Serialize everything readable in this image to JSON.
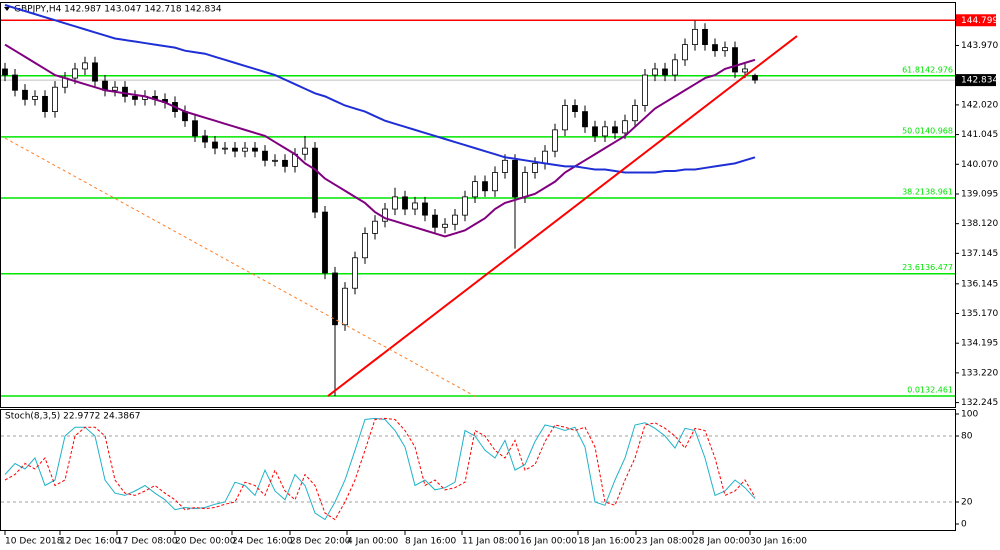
{
  "chart_data": [
    {
      "type": "candlestick",
      "title": "GBPJPY,H4  142.987 143.047 142.718 142.834",
      "xlim": [
        0,
        95
      ],
      "xticks": [
        {
          "value": 0,
          "label": "10 Dec 2018"
        },
        {
          "value": 5.5,
          "label": "12 Dec 16:00"
        },
        {
          "value": 11.2,
          "label": "17 Dec 08:00"
        },
        {
          "value": 17,
          "label": "20 Dec 00:00"
        },
        {
          "value": 22.7,
          "label": "24 Dec 16:00"
        },
        {
          "value": 28.5,
          "label": "28 Dec 20:00"
        },
        {
          "value": 34.2,
          "label": "4 Jan 00:00"
        },
        {
          "value": 40,
          "label": "8 Jan 16:00"
        },
        {
          "value": 45.7,
          "label": "11 Jan 08:00"
        },
        {
          "value": 51.5,
          "label": "16 Jan 00:00"
        },
        {
          "value": 57.3,
          "label": "18 Jan 16:00"
        },
        {
          "value": 63.1,
          "label": "23 Jan 08:00"
        },
        {
          "value": 68.8,
          "label": "28 Jan 00:00"
        },
        {
          "value": 74.5,
          "label": "30 Jan 16:00"
        }
      ],
      "ylim": [
        132.1,
        145.3
      ],
      "yticks": [
        {
          "value": 143.97,
          "label": "143.970"
        },
        {
          "value": 142.02,
          "label": "142.020"
        },
        141.045,
        {
          "value": 140.07,
          "label": "140.070"
        },
        139.095,
        {
          "value": 138.12,
          "label": "138.120"
        },
        137.145,
        136.145,
        {
          "value": 135.17,
          "label": "135.170"
        },
        134.195,
        {
          "value": 133.22,
          "label": "133.220"
        },
        132.245
      ],
      "current_price": 142.834,
      "levels": [
        {
          "value": 144.799,
          "color": "#ff0000"
        }
      ],
      "fib_levels": [
        {
          "value": 142.976,
          "label": "61.8142.976"
        },
        {
          "value": 140.968,
          "label": "50.0140.968"
        },
        {
          "value": 138.961,
          "label": "38.2138.961"
        },
        {
          "value": 136.477,
          "label": "23.6136.477"
        },
        {
          "value": 132.461,
          "label": "0.0132.461"
        }
      ],
      "fib_color": "#00e600",
      "trend_lines": [
        {
          "x": [
            32.3,
            79.2
          ],
          "y": [
            132.461,
            144.28
          ],
          "color": "#ff0000",
          "dashed": false
        },
        {
          "x": [
            0,
            47.3
          ],
          "y": [
            140.93,
            132.4
          ],
          "color": "#ff7f27",
          "dashed": true
        }
      ],
      "open": [
        143.2,
        143.0,
        142.5,
        142.2,
        142.3,
        141.8,
        142.6,
        142.9,
        143.2,
        143.4,
        142.8,
        142.5,
        142.6,
        142.3,
        142.2,
        142.3,
        142.2,
        142.1,
        141.8,
        141.5,
        141.0,
        140.8,
        140.6,
        140.6,
        140.5,
        140.6,
        140.5,
        140.2,
        140.2,
        140.0,
        140.4,
        140.6,
        138.5,
        136.5,
        134.8,
        136.0,
        137.0,
        137.8,
        138.2,
        138.6,
        139.0,
        138.6,
        138.8,
        138.4,
        138.0,
        138.1,
        138.4,
        139.0,
        139.5,
        139.2,
        139.8,
        140.2,
        139.0,
        139.8,
        140.1,
        140.5,
        141.2,
        142.0,
        141.8,
        141.3,
        141.0,
        141.3,
        141.1,
        141.5,
        142.0,
        143.0,
        143.2,
        143.0,
        143.5,
        144.0,
        144.5,
        144.0,
        143.8,
        143.9,
        143.1,
        142.987
      ],
      "high": [
        143.4,
        143.2,
        142.7,
        142.5,
        142.5,
        142.8,
        143.1,
        143.4,
        143.6,
        143.6,
        143.0,
        142.8,
        142.8,
        142.5,
        142.5,
        142.5,
        142.4,
        142.3,
        142.0,
        141.7,
        141.2,
        141.0,
        140.8,
        140.8,
        140.8,
        140.8,
        140.7,
        140.4,
        140.4,
        140.6,
        141.0,
        140.8,
        138.7,
        136.7,
        136.2,
        137.2,
        138.0,
        138.4,
        138.8,
        139.3,
        139.2,
        139.0,
        139.0,
        138.6,
        138.3,
        138.6,
        139.2,
        139.7,
        139.7,
        140.0,
        140.4,
        140.4,
        140.0,
        140.3,
        140.7,
        141.4,
        142.2,
        142.2,
        142.0,
        141.5,
        141.5,
        141.5,
        141.7,
        142.2,
        143.2,
        143.4,
        143.4,
        143.7,
        144.2,
        144.799,
        144.7,
        144.2,
        144.1,
        144.1,
        143.4,
        143.047
      ],
      "low": [
        142.8,
        142.3,
        142.0,
        142.0,
        141.6,
        141.6,
        142.4,
        142.7,
        143.0,
        142.6,
        142.3,
        142.3,
        142.1,
        142.0,
        142.0,
        142.0,
        141.9,
        141.6,
        141.3,
        140.8,
        140.6,
        140.4,
        140.4,
        140.3,
        140.3,
        140.3,
        140.0,
        140.0,
        139.8,
        139.8,
        140.2,
        138.3,
        136.3,
        132.461,
        134.6,
        135.8,
        136.8,
        137.6,
        138.0,
        138.4,
        138.4,
        138.4,
        138.2,
        137.8,
        137.8,
        137.9,
        138.2,
        138.8,
        139.0,
        139.0,
        139.6,
        137.3,
        138.8,
        139.6,
        139.9,
        140.3,
        141.0,
        141.6,
        141.1,
        140.8,
        140.8,
        140.9,
        140.9,
        141.3,
        141.8,
        142.8,
        142.8,
        142.8,
        143.3,
        143.8,
        143.8,
        143.6,
        143.6,
        142.9,
        142.9,
        142.718
      ],
      "close": [
        143.0,
        142.5,
        142.2,
        142.3,
        141.8,
        142.6,
        142.9,
        143.2,
        143.4,
        142.8,
        142.5,
        142.6,
        142.3,
        142.2,
        142.3,
        142.2,
        142.1,
        141.8,
        141.5,
        141.0,
        140.8,
        140.6,
        140.6,
        140.5,
        140.6,
        140.5,
        140.2,
        140.2,
        140.0,
        140.4,
        140.6,
        138.5,
        136.5,
        134.8,
        136.0,
        137.0,
        137.8,
        138.2,
        138.6,
        139.0,
        138.6,
        138.8,
        138.4,
        138.0,
        138.1,
        138.4,
        139.0,
        139.5,
        139.2,
        139.8,
        140.2,
        139.0,
        139.8,
        140.1,
        140.5,
        141.2,
        142.0,
        141.8,
        141.3,
        141.0,
        141.3,
        141.1,
        141.5,
        142.0,
        143.0,
        143.2,
        143.0,
        143.5,
        144.0,
        144.5,
        144.0,
        143.8,
        143.9,
        143.1,
        143.2,
        142.834
      ],
      "ma": [
        {
          "color": "#800080",
          "values": [
            144.0,
            143.8,
            143.6,
            143.4,
            143.2,
            143.0,
            142.9,
            142.8,
            142.7,
            142.6,
            142.5,
            142.45,
            142.4,
            142.35,
            142.3,
            142.2,
            142.1,
            141.95,
            141.8,
            141.7,
            141.6,
            141.5,
            141.4,
            141.3,
            141.2,
            141.1,
            141.0,
            140.8,
            140.6,
            140.4,
            140.1,
            139.9,
            139.6,
            139.4,
            139.2,
            139.0,
            138.8,
            138.5,
            138.3,
            138.2,
            138.1,
            138.0,
            137.9,
            137.8,
            137.7,
            137.8,
            137.9,
            138.1,
            138.3,
            138.6,
            138.8,
            138.9,
            139.0,
            139.1,
            139.3,
            139.5,
            139.8,
            140.0,
            140.2,
            140.4,
            140.6,
            140.8,
            141.0,
            141.3,
            141.6,
            141.9,
            142.1,
            142.3,
            142.5,
            142.7,
            142.9,
            143.0,
            143.2,
            143.3,
            143.4,
            143.5
          ]
        },
        {
          "color": "#1f2fd6",
          "values": [
            145.3,
            145.2,
            145.1,
            145.0,
            144.9,
            144.8,
            144.7,
            144.6,
            144.5,
            144.4,
            144.3,
            144.2,
            144.15,
            144.1,
            144.05,
            144.0,
            143.95,
            143.9,
            143.8,
            143.75,
            143.7,
            143.6,
            143.5,
            143.4,
            143.3,
            143.2,
            143.1,
            143.0,
            142.85,
            142.7,
            142.55,
            142.4,
            142.3,
            142.15,
            142.0,
            141.9,
            141.8,
            141.65,
            141.5,
            141.4,
            141.3,
            141.2,
            141.1,
            141.0,
            140.9,
            140.8,
            140.7,
            140.6,
            140.5,
            140.4,
            140.3,
            140.25,
            140.2,
            140.15,
            140.1,
            140.05,
            140.0,
            140.0,
            139.95,
            139.9,
            139.9,
            139.85,
            139.8,
            139.8,
            139.8,
            139.8,
            139.85,
            139.85,
            139.9,
            139.9,
            139.95,
            140.0,
            140.05,
            140.1,
            140.2,
            140.3
          ]
        }
      ]
    },
    {
      "type": "line",
      "title": "Stoch(8,3,5) 22.9772 24.3867",
      "ylim": [
        0,
        100
      ],
      "yticks": [
        0,
        20,
        80,
        100
      ],
      "grid_levels": [
        20,
        80
      ],
      "series": [
        {
          "color": "#20b2c8",
          "dashed": false,
          "values": [
            45,
            55,
            50,
            60,
            35,
            40,
            80,
            88,
            88,
            80,
            40,
            28,
            26,
            30,
            35,
            28,
            22,
            13,
            15,
            14,
            15,
            18,
            20,
            38,
            35,
            26,
            49,
            30,
            22,
            45,
            35,
            10,
            4,
            20,
            40,
            67,
            95,
            96,
            95,
            85,
            70,
            35,
            40,
            31,
            33,
            38,
            85,
            80,
            67,
            60,
            76,
            49,
            54,
            75,
            90,
            88,
            85,
            88,
            70,
            20,
            17,
            40,
            60,
            90,
            92,
            87,
            80,
            69,
            87,
            85,
            60,
            26,
            30,
            40,
            33,
            22.9772
          ]
        },
        {
          "color": "#ff0000",
          "dashed": true,
          "values": [
            40,
            45,
            55,
            50,
            60,
            35,
            40,
            80,
            88,
            88,
            80,
            40,
            28,
            26,
            30,
            35,
            28,
            22,
            13,
            15,
            14,
            15,
            18,
            20,
            38,
            35,
            26,
            49,
            30,
            22,
            45,
            35,
            10,
            4,
            20,
            40,
            67,
            95,
            96,
            95,
            85,
            70,
            35,
            40,
            31,
            33,
            38,
            85,
            80,
            67,
            60,
            76,
            49,
            54,
            75,
            90,
            88,
            85,
            88,
            70,
            20,
            17,
            40,
            60,
            90,
            92,
            87,
            80,
            69,
            87,
            85,
            60,
            26,
            30,
            40,
            24.3867
          ]
        }
      ]
    }
  ]
}
